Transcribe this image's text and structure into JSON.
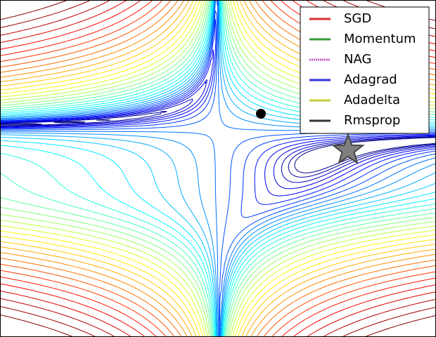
{
  "chart_data": {
    "type": "contour",
    "series": [
      {
        "name": "SGD",
        "color": "#d62f2f"
      },
      {
        "name": "Momentum",
        "color": "#3a9a3a"
      },
      {
        "name": "NAG",
        "color": "#c45ec4"
      },
      {
        "name": "Adagrad",
        "color": "#3030d8"
      },
      {
        "name": "Adadelta",
        "color": "#c8c83a"
      },
      {
        "name": "Rmsprop",
        "color": "#333333"
      }
    ],
    "legend": "upper right"
  }
}
